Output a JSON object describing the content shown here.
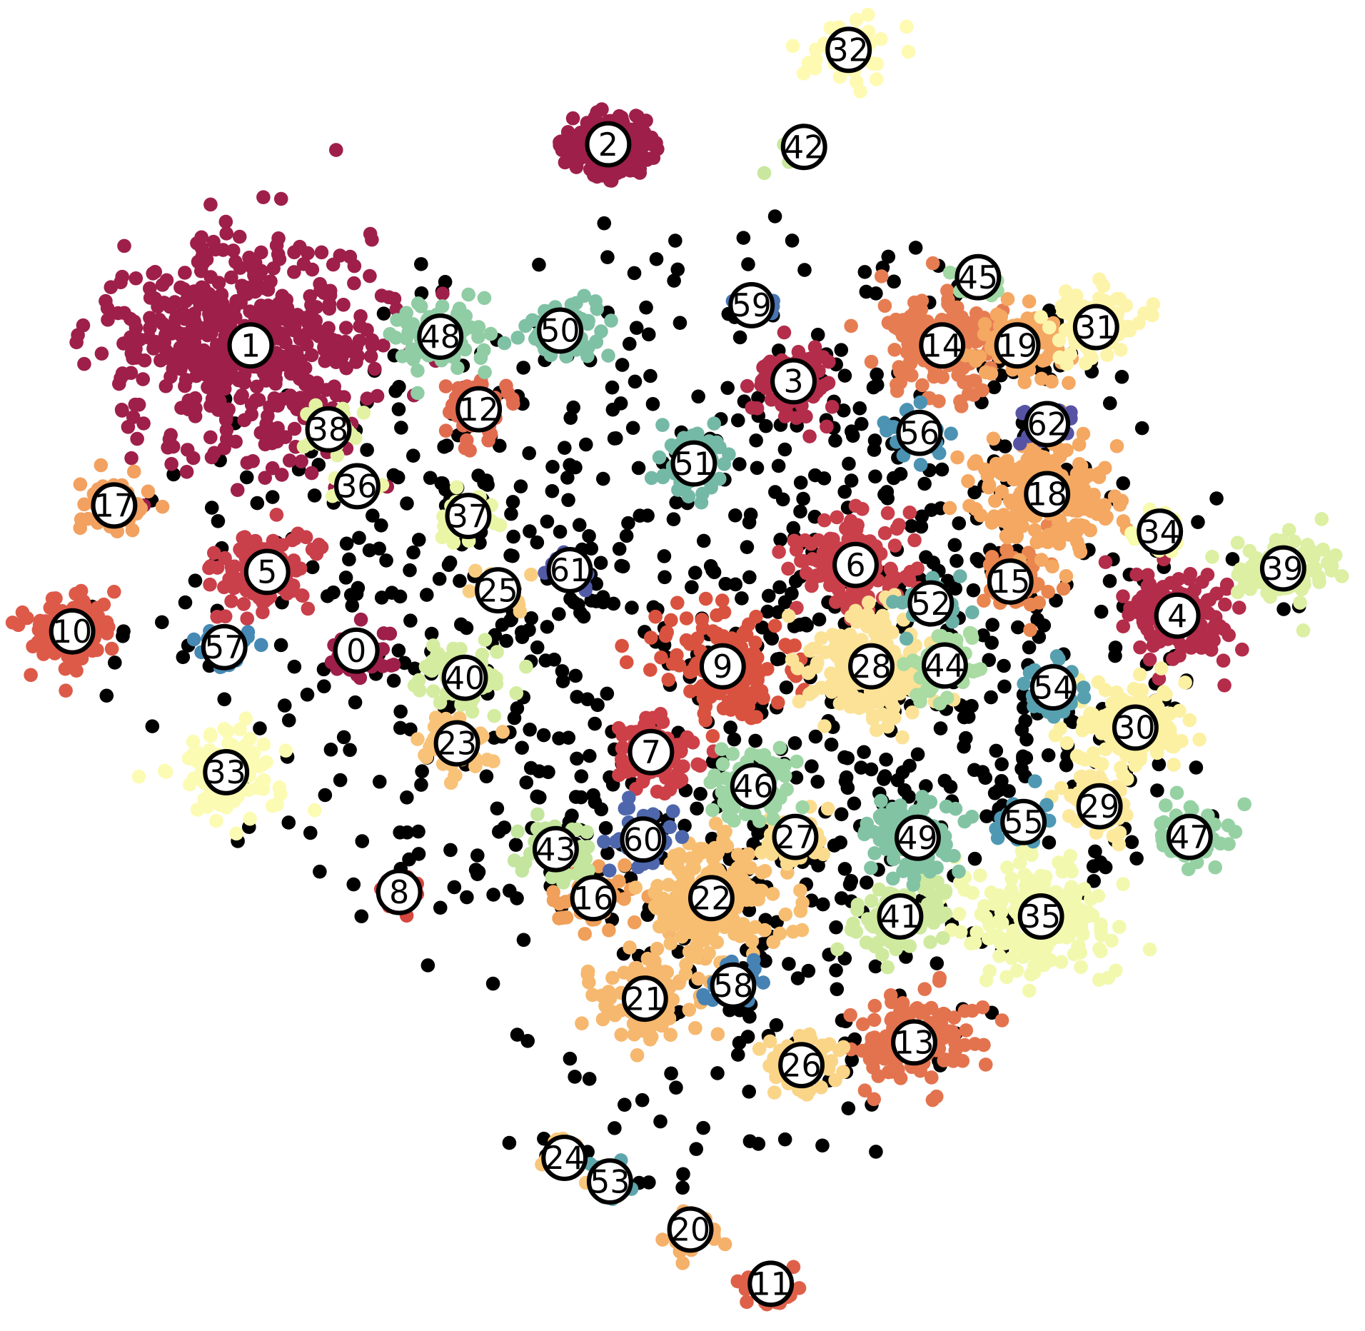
{
  "chart_data": {
    "type": "scatter",
    "title": "",
    "xlabel": "",
    "ylabel": "",
    "axes_visible": false,
    "grid": false,
    "legend": "none",
    "xlim": [
      0,
      1560
    ],
    "ylim": [
      0,
      1522
    ],
    "noise_color": "#000000",
    "clusters": [
      {
        "label": "0",
        "x": 407,
        "y": 744,
        "color": "#9e1f4a",
        "spread": 34,
        "points": 45
      },
      {
        "label": "1",
        "x": 286,
        "y": 395,
        "color": "#9e1f4a",
        "spread": 140,
        "points": 520
      },
      {
        "label": "2",
        "x": 695,
        "y": 165,
        "color": "#9e1f4a",
        "spread": 38,
        "points": 140,
        "shape": "ring"
      },
      {
        "label": "3",
        "x": 907,
        "y": 436,
        "color": "#b32c4a",
        "spread": 48,
        "points": 95
      },
      {
        "label": "4",
        "x": 1346,
        "y": 704,
        "color": "#b32c4a",
        "spread": 60,
        "points": 120
      },
      {
        "label": "5",
        "x": 305,
        "y": 654,
        "color": "#c93f4a",
        "spread": 55,
        "points": 110
      },
      {
        "label": "6",
        "x": 978,
        "y": 646,
        "color": "#c93f4a",
        "spread": 62,
        "points": 130
      },
      {
        "label": "7",
        "x": 744,
        "y": 860,
        "color": "#cd4048",
        "spread": 45,
        "points": 80
      },
      {
        "label": "8",
        "x": 456,
        "y": 1020,
        "color": "#d6473f",
        "spread": 20,
        "points": 25
      },
      {
        "label": "9",
        "x": 826,
        "y": 762,
        "color": "#d9523f",
        "spread": 62,
        "points": 150
      },
      {
        "label": "10",
        "x": 82,
        "y": 722,
        "color": "#dd5a48",
        "spread": 45,
        "points": 140
      },
      {
        "label": "11",
        "x": 881,
        "y": 1468,
        "color": "#de6049",
        "spread": 28,
        "points": 40
      },
      {
        "label": "12",
        "x": 547,
        "y": 468,
        "color": "#e06b4e",
        "spread": 38,
        "points": 60
      },
      {
        "label": "13",
        "x": 1045,
        "y": 1192,
        "color": "#e3734e",
        "spread": 62,
        "points": 120
      },
      {
        "label": "14",
        "x": 1077,
        "y": 395,
        "color": "#e67d52",
        "spread": 60,
        "points": 160
      },
      {
        "label": "15",
        "x": 1155,
        "y": 665,
        "color": "#e9854f",
        "spread": 38,
        "points": 60
      },
      {
        "label": "16",
        "x": 678,
        "y": 1027,
        "color": "#f0a05a",
        "spread": 40,
        "points": 60
      },
      {
        "label": "17",
        "x": 130,
        "y": 578,
        "color": "#f2a160",
        "spread": 38,
        "points": 60
      },
      {
        "label": "18",
        "x": 1197,
        "y": 565,
        "color": "#f4a862",
        "spread": 75,
        "points": 220
      },
      {
        "label": "19",
        "x": 1163,
        "y": 395,
        "color": "#f4a862",
        "spread": 45,
        "points": 80
      },
      {
        "label": "20",
        "x": 789,
        "y": 1406,
        "color": "#f5b06a",
        "spread": 30,
        "points": 30
      },
      {
        "label": "21",
        "x": 737,
        "y": 1142,
        "color": "#f6b86e",
        "spread": 55,
        "points": 110
      },
      {
        "label": "22",
        "x": 813,
        "y": 1027,
        "color": "#f7be72",
        "spread": 75,
        "points": 220
      },
      {
        "label": "23",
        "x": 522,
        "y": 850,
        "color": "#f8c278",
        "spread": 40,
        "points": 60
      },
      {
        "label": "24",
        "x": 645,
        "y": 1324,
        "color": "#f8c77b",
        "spread": 25,
        "points": 25
      },
      {
        "label": "25",
        "x": 569,
        "y": 675,
        "color": "#f9cd80",
        "spread": 25,
        "points": 30
      },
      {
        "label": "26",
        "x": 916,
        "y": 1218,
        "color": "#fad588",
        "spread": 40,
        "points": 50
      },
      {
        "label": "27",
        "x": 909,
        "y": 957,
        "color": "#fbdc8f",
        "spread": 35,
        "points": 40
      },
      {
        "label": "28",
        "x": 996,
        "y": 762,
        "color": "#fbe296",
        "spread": 70,
        "points": 200
      },
      {
        "label": "29",
        "x": 1257,
        "y": 922,
        "color": "#fce99c",
        "spread": 38,
        "points": 50
      },
      {
        "label": "30",
        "x": 1298,
        "y": 832,
        "color": "#fcf0a3",
        "spread": 60,
        "points": 150
      },
      {
        "label": "31",
        "x": 1253,
        "y": 374,
        "color": "#fdf4ab",
        "spread": 50,
        "points": 90
      },
      {
        "label": "32",
        "x": 970,
        "y": 57,
        "color": "#fefab2",
        "spread": 50,
        "points": 45
      },
      {
        "label": "33",
        "x": 258,
        "y": 883,
        "color": "#fcfbb3",
        "spread": 55,
        "points": 110
      },
      {
        "label": "34",
        "x": 1326,
        "y": 608,
        "color": "#f9fbae",
        "spread": 25,
        "points": 25
      },
      {
        "label": "35",
        "x": 1190,
        "y": 1048,
        "color": "#f2f9ae",
        "spread": 75,
        "points": 200
      },
      {
        "label": "36",
        "x": 408,
        "y": 556,
        "color": "#eef7a8",
        "spread": 25,
        "points": 35
      },
      {
        "label": "37",
        "x": 535,
        "y": 590,
        "color": "#eaf5a6",
        "spread": 30,
        "points": 40
      },
      {
        "label": "38",
        "x": 375,
        "y": 491,
        "color": "#e3f2a2",
        "spread": 28,
        "points": 40
      },
      {
        "label": "39",
        "x": 1467,
        "y": 650,
        "color": "#dcefa2",
        "spread": 50,
        "points": 90
      },
      {
        "label": "40",
        "x": 531,
        "y": 775,
        "color": "#d4eca0",
        "spread": 45,
        "points": 80
      },
      {
        "label": "41",
        "x": 1029,
        "y": 1048,
        "color": "#cfea9e",
        "spread": 50,
        "points": 90
      },
      {
        "label": "42",
        "x": 919,
        "y": 168,
        "color": "#c9e79e",
        "spread": 30,
        "points": 20
      },
      {
        "label": "43",
        "x": 635,
        "y": 971,
        "color": "#c3e59e",
        "spread": 38,
        "points": 60
      },
      {
        "label": "44",
        "x": 1080,
        "y": 761,
        "color": "#a9dba2",
        "spread": 40,
        "points": 60
      },
      {
        "label": "45",
        "x": 1118,
        "y": 317,
        "color": "#a2d8a3",
        "spread": 25,
        "points": 30
      },
      {
        "label": "46",
        "x": 861,
        "y": 899,
        "color": "#9dd5a4",
        "spread": 45,
        "points": 80
      },
      {
        "label": "47",
        "x": 1360,
        "y": 957,
        "color": "#96d1a4",
        "spread": 40,
        "points": 60
      },
      {
        "label": "48",
        "x": 503,
        "y": 385,
        "color": "#90cca4",
        "spread": 42,
        "points": 80
      },
      {
        "label": "49",
        "x": 1049,
        "y": 958,
        "color": "#82c3a4",
        "spread": 50,
        "points": 90
      },
      {
        "label": "50",
        "x": 640,
        "y": 378,
        "color": "#7fc1a5",
        "spread": 40,
        "points": 70
      },
      {
        "label": "51",
        "x": 793,
        "y": 530,
        "color": "#74b9a6",
        "spread": 40,
        "points": 60
      },
      {
        "label": "52",
        "x": 1064,
        "y": 690,
        "color": "#6cb1a8",
        "spread": 30,
        "points": 40
      },
      {
        "label": "53",
        "x": 697,
        "y": 1351,
        "color": "#5ea6ad",
        "spread": 25,
        "points": 18
      },
      {
        "label": "54",
        "x": 1204,
        "y": 786,
        "color": "#57a0b0",
        "spread": 30,
        "points": 35
      },
      {
        "label": "55",
        "x": 1170,
        "y": 940,
        "color": "#4f98b3",
        "spread": 28,
        "points": 35
      },
      {
        "label": "56",
        "x": 1051,
        "y": 495,
        "color": "#4b92b3",
        "spread": 30,
        "points": 40
      },
      {
        "label": "57",
        "x": 256,
        "y": 740,
        "color": "#4689b4",
        "spread": 25,
        "points": 30
      },
      {
        "label": "58",
        "x": 838,
        "y": 1127,
        "color": "#4682b3",
        "spread": 25,
        "points": 35
      },
      {
        "label": "59",
        "x": 859,
        "y": 349,
        "color": "#4a74b1",
        "spread": 22,
        "points": 20
      },
      {
        "label": "60",
        "x": 735,
        "y": 960,
        "color": "#4e67ac",
        "spread": 35,
        "points": 50
      },
      {
        "label": "61",
        "x": 651,
        "y": 652,
        "color": "#525ba8",
        "spread": 22,
        "points": 25
      },
      {
        "label": "62",
        "x": 1197,
        "y": 485,
        "color": "#5753a4",
        "spread": 22,
        "points": 20
      }
    ]
  }
}
